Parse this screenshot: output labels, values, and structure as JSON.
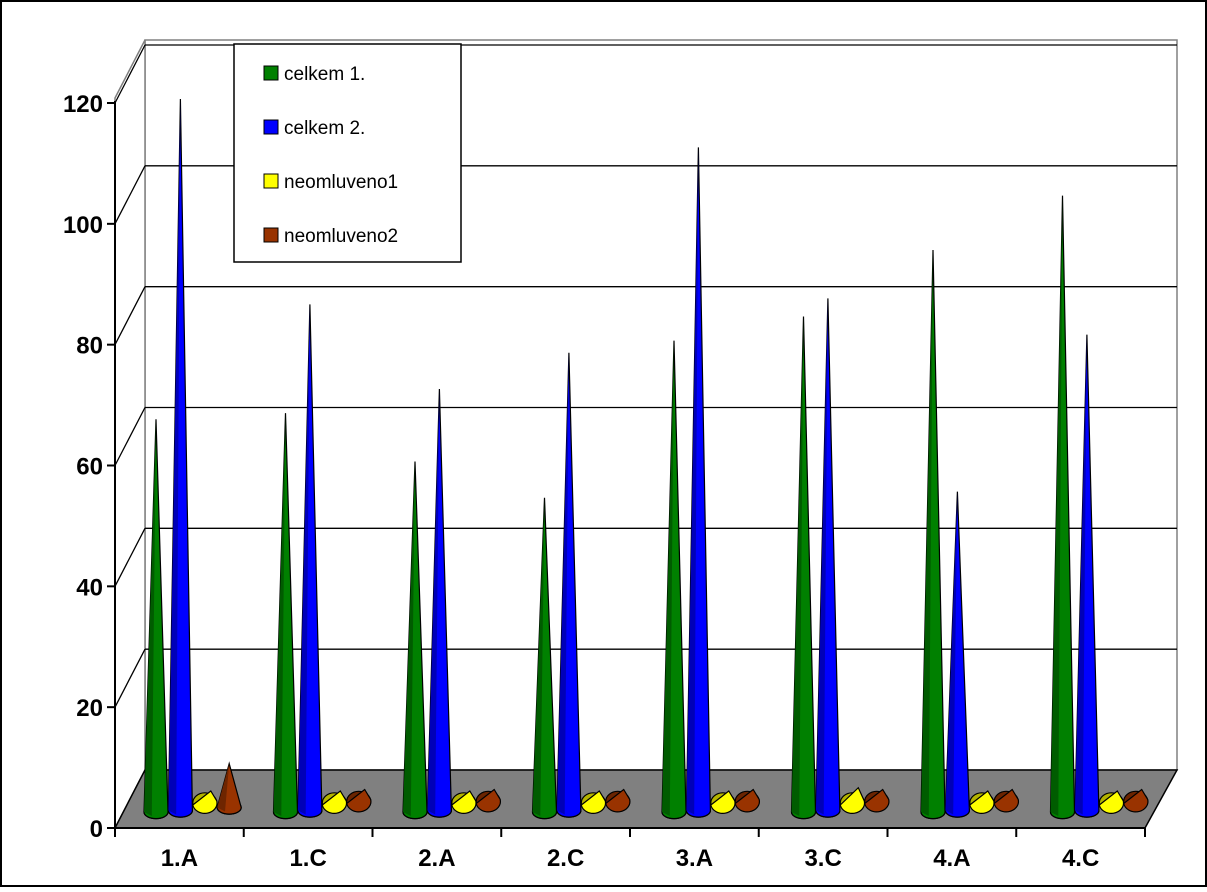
{
  "chart_data": {
    "type": "bar",
    "style": "3d-cone",
    "categories": [
      "1.A",
      "1.C",
      "2.A",
      "2.C",
      "3.A",
      "3.C",
      "4.A",
      "4.C"
    ],
    "series": [
      {
        "name": "celkem 1.",
        "color": "#008000",
        "values": [
          67,
          68,
          60,
          54,
          80,
          84,
          95,
          104
        ]
      },
      {
        "name": "celkem 2.",
        "color": "#0000FF",
        "values": [
          120,
          86,
          72,
          78,
          112,
          87,
          55,
          81
        ]
      },
      {
        "name": "neomluveno1",
        "color": "#FFFF00",
        "values": [
          4,
          4,
          4,
          4,
          4,
          6,
          4,
          4
        ]
      },
      {
        "name": "neomluveno2",
        "color": "#993300",
        "values": [
          10,
          4,
          4,
          4,
          4,
          4,
          4,
          4
        ]
      }
    ],
    "yticks": [
      "0",
      "20",
      "40",
      "60",
      "80",
      "100",
      "120"
    ],
    "ylim": [
      0,
      120
    ],
    "grid": true,
    "legend_position": "top-left",
    "floor_color": "#808080"
  }
}
